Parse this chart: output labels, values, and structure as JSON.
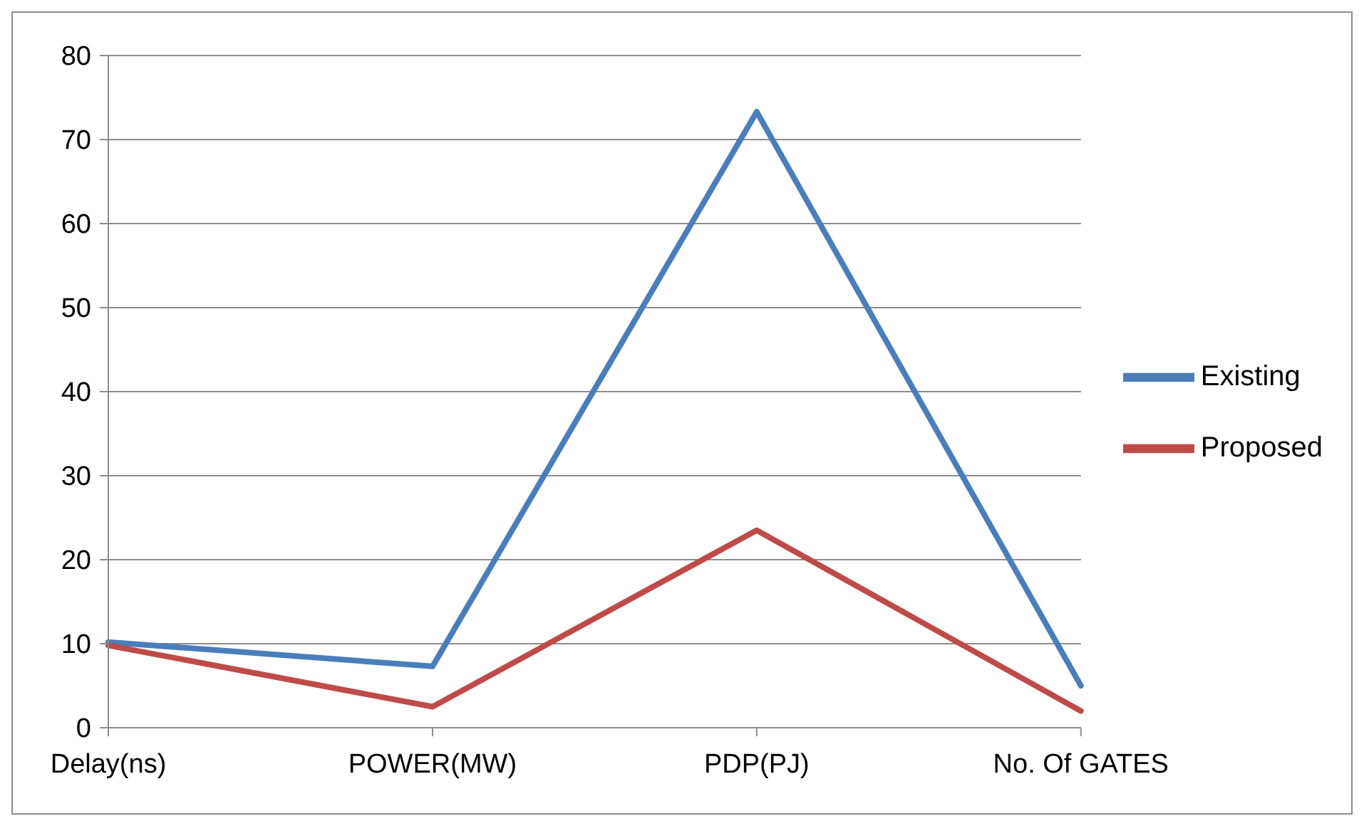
{
  "chart_data": {
    "type": "line",
    "categories": [
      "Delay(ns)",
      "POWER(MW)",
      "PDP(PJ)",
      "No. Of GATES"
    ],
    "series": [
      {
        "name": "Existing",
        "color": "#4a7ebb",
        "values": [
          10.2,
          7.3,
          73.3,
          5
        ]
      },
      {
        "name": "Proposed",
        "color": "#be4b48",
        "values": [
          9.8,
          2.5,
          23.5,
          2
        ]
      }
    ],
    "ylim": [
      0,
      80
    ],
    "yticks": [
      0,
      10,
      20,
      30,
      40,
      50,
      60,
      70,
      80
    ],
    "grid": "y",
    "legend": "right",
    "marker": "none",
    "line_style": "solid"
  }
}
